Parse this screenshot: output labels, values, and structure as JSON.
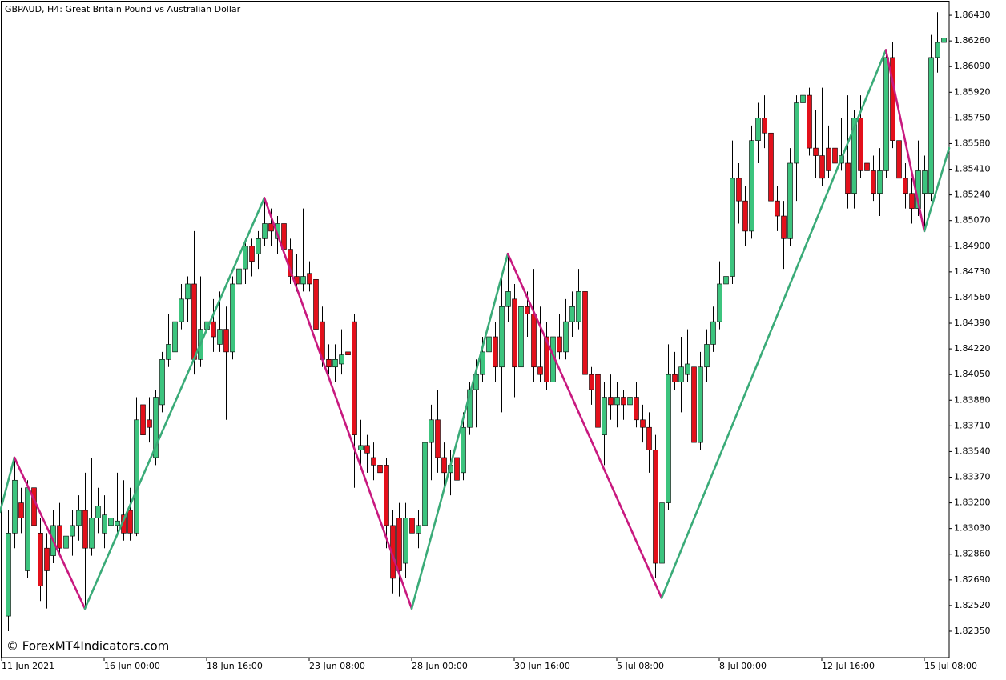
{
  "chart_data": {
    "type": "candlestick",
    "title": "GBPAUD, H4:  Great Britain Pound vs Australian Dollar",
    "watermark": "© ForexMT4Indicators.com",
    "up_color": "#3cc47e",
    "down_color": "#e3101b",
    "xlim": [
      -1.25,
      146.875
    ],
    "ylim": [
      1.82175,
      1.86531
    ],
    "xticks": [
      {
        "value": 0,
        "label": "11 Jun 2021"
      },
      {
        "value": 16,
        "label": "16 Jun 00:00"
      },
      {
        "value": 32,
        "label": "18 Jun 16:00"
      },
      {
        "value": 48,
        "label": "23 Jun 08:00"
      },
      {
        "value": 64,
        "label": "28 Jun 00:00"
      },
      {
        "value": 80,
        "label": "30 Jun 16:00"
      },
      {
        "value": 96,
        "label": "5 Jul 08:00"
      },
      {
        "value": 112,
        "label": "8 Jul 00:00"
      },
      {
        "value": 128,
        "label": "12 Jul 16:00"
      },
      {
        "value": 144,
        "label": "15 Jul 08:00"
      }
    ],
    "yticks": [
      {
        "value": 1.8643,
        "label": "1.86430"
      },
      {
        "value": 1.8626,
        "label": "1.86260"
      },
      {
        "value": 1.8609,
        "label": "1.86090"
      },
      {
        "value": 1.8592,
        "label": "1.85920"
      },
      {
        "value": 1.8575,
        "label": "1.85750"
      },
      {
        "value": 1.8558,
        "label": "1.85580"
      },
      {
        "value": 1.8541,
        "label": "1.85410"
      },
      {
        "value": 1.8524,
        "label": "1.85240"
      },
      {
        "value": 1.8507,
        "label": "1.85070"
      },
      {
        "value": 1.849,
        "label": "1.84900"
      },
      {
        "value": 1.8473,
        "label": "1.84730"
      },
      {
        "value": 1.8456,
        "label": "1.84560"
      },
      {
        "value": 1.8439,
        "label": "1.84390"
      },
      {
        "value": 1.8422,
        "label": "1.84220"
      },
      {
        "value": 1.8405,
        "label": "1.84050"
      },
      {
        "value": 1.8388,
        "label": "1.83880"
      },
      {
        "value": 1.8371,
        "label": "1.83710"
      },
      {
        "value": 1.8354,
        "label": "1.83540"
      },
      {
        "value": 1.8337,
        "label": "1.83370"
      },
      {
        "value": 1.832,
        "label": "1.83200"
      },
      {
        "value": 1.8303,
        "label": "1.83030"
      },
      {
        "value": 1.8286,
        "label": "1.82860"
      },
      {
        "value": 1.8269,
        "label": "1.82690"
      },
      {
        "value": 1.8252,
        "label": "1.82520"
      },
      {
        "value": 1.8235,
        "label": "1.82350"
      }
    ],
    "ohlc": [
      [
        1.8245,
        1.8315,
        1.8235,
        1.83
      ],
      [
        1.83,
        1.835,
        1.829,
        1.8335
      ],
      [
        1.832,
        1.833,
        1.83,
        1.831
      ],
      [
        1.8275,
        1.8335,
        1.827,
        1.833
      ],
      [
        1.833,
        1.8332,
        1.8295,
        1.8305
      ],
      [
        1.83,
        1.831,
        1.8255,
        1.8265
      ],
      [
        1.829,
        1.83,
        1.825,
        1.8275
      ],
      [
        1.8285,
        1.8315,
        1.828,
        1.8305
      ],
      [
        1.8305,
        1.832,
        1.8285,
        1.829
      ],
      [
        1.829,
        1.831,
        1.828,
        1.8298
      ],
      [
        1.8298,
        1.8315,
        1.8285,
        1.8305
      ],
      [
        1.8305,
        1.8325,
        1.8295,
        1.8315
      ],
      [
        1.8315,
        1.834,
        1.825,
        1.829
      ],
      [
        1.829,
        1.835,
        1.8285,
        1.831
      ],
      [
        1.831,
        1.833,
        1.83,
        1.8318
      ],
      [
        1.83,
        1.8325,
        1.829,
        1.8312
      ],
      [
        1.8305,
        1.832,
        1.8295,
        1.831
      ],
      [
        1.8305,
        1.834,
        1.8298,
        1.8308
      ],
      [
        1.8312,
        1.8335,
        1.8295,
        1.83
      ],
      [
        1.8315,
        1.833,
        1.8295,
        1.83
      ],
      [
        1.83,
        1.839,
        1.8298,
        1.8375
      ],
      [
        1.8385,
        1.8405,
        1.836,
        1.8365
      ],
      [
        1.8375,
        1.839,
        1.836,
        1.837
      ],
      [
        1.835,
        1.8395,
        1.8345,
        1.839
      ],
      [
        1.8385,
        1.842,
        1.838,
        1.8415
      ],
      [
        1.8415,
        1.8445,
        1.841,
        1.8425
      ],
      [
        1.842,
        1.845,
        1.8415,
        1.844
      ],
      [
        1.844,
        1.8465,
        1.8435,
        1.8455
      ],
      [
        1.8455,
        1.847,
        1.844,
        1.8465
      ],
      [
        1.8465,
        1.85,
        1.8405,
        1.8415
      ],
      [
        1.8415,
        1.847,
        1.841,
        1.8435
      ],
      [
        1.8435,
        1.8485,
        1.843,
        1.844
      ],
      [
        1.844,
        1.8455,
        1.842,
        1.843
      ],
      [
        1.8425,
        1.846,
        1.842,
        1.8435
      ],
      [
        1.8435,
        1.845,
        1.8375,
        1.842
      ],
      [
        1.842,
        1.847,
        1.8415,
        1.8465
      ],
      [
        1.8465,
        1.8485,
        1.8455,
        1.8475
      ],
      [
        1.8475,
        1.8495,
        1.8465,
        1.849
      ],
      [
        1.849,
        1.8495,
        1.847,
        1.848
      ],
      [
        1.8485,
        1.85,
        1.8475,
        1.8495
      ],
      [
        1.8495,
        1.8522,
        1.849,
        1.8505
      ],
      [
        1.8505,
        1.8515,
        1.849,
        1.85
      ],
      [
        1.8495,
        1.851,
        1.8485,
        1.8505
      ],
      [
        1.8505,
        1.851,
        1.848,
        1.8488
      ],
      [
        1.8488,
        1.8495,
        1.8465,
        1.847
      ],
      [
        1.847,
        1.8485,
        1.846,
        1.8465
      ],
      [
        1.8465,
        1.8515,
        1.846,
        1.847
      ],
      [
        1.8472,
        1.848,
        1.846,
        1.8465
      ],
      [
        1.8468,
        1.8475,
        1.843,
        1.8435
      ],
      [
        1.844,
        1.845,
        1.841,
        1.8415
      ],
      [
        1.8415,
        1.8425,
        1.8405,
        1.841
      ],
      [
        1.841,
        1.8425,
        1.84,
        1.8415
      ],
      [
        1.8412,
        1.8435,
        1.8405,
        1.8418
      ],
      [
        1.842,
        1.8445,
        1.841,
        1.8418
      ],
      [
        1.844,
        1.8445,
        1.833,
        1.8365
      ],
      [
        1.8355,
        1.8375,
        1.8345,
        1.8358
      ],
      [
        1.8358,
        1.8365,
        1.834,
        1.8353
      ],
      [
        1.835,
        1.836,
        1.8335,
        1.8345
      ],
      [
        1.8345,
        1.8355,
        1.832,
        1.834
      ],
      [
        1.8345,
        1.835,
        1.829,
        1.8305
      ],
      [
        1.8305,
        1.8315,
        1.826,
        1.827
      ],
      [
        1.831,
        1.832,
        1.8258,
        1.8275
      ],
      [
        1.828,
        1.832,
        1.827,
        1.831
      ],
      [
        1.831,
        1.832,
        1.825,
        1.83
      ],
      [
        1.83,
        1.8315,
        1.829,
        1.8305
      ],
      [
        1.8305,
        1.837,
        1.83,
        1.836
      ],
      [
        1.836,
        1.8385,
        1.8335,
        1.8375
      ],
      [
        1.8375,
        1.8395,
        1.834,
        1.835
      ],
      [
        1.835,
        1.836,
        1.833,
        1.834
      ],
      [
        1.834,
        1.8355,
        1.8325,
        1.8345
      ],
      [
        1.835,
        1.836,
        1.8325,
        1.8335
      ],
      [
        1.834,
        1.838,
        1.8335,
        1.837
      ],
      [
        1.837,
        1.84,
        1.8365,
        1.8395
      ],
      [
        1.8395,
        1.8415,
        1.837,
        1.8405
      ],
      [
        1.8405,
        1.843,
        1.84,
        1.842
      ],
      [
        1.842,
        1.8435,
        1.839,
        1.843
      ],
      [
        1.843,
        1.844,
        1.84,
        1.841
      ],
      [
        1.841,
        1.847,
        1.838,
        1.845
      ],
      [
        1.845,
        1.8485,
        1.844,
        1.846
      ],
      [
        1.8455,
        1.8465,
        1.839,
        1.841
      ],
      [
        1.841,
        1.847,
        1.8405,
        1.845
      ],
      [
        1.845,
        1.846,
        1.843,
        1.8445
      ],
      [
        1.8445,
        1.8475,
        1.84,
        1.841
      ],
      [
        1.841,
        1.845,
        1.84,
        1.8405
      ],
      [
        1.843,
        1.844,
        1.8395,
        1.84
      ],
      [
        1.84,
        1.844,
        1.8395,
        1.843
      ],
      [
        1.843,
        1.8445,
        1.8415,
        1.842
      ],
      [
        1.842,
        1.8455,
        1.8415,
        1.844
      ],
      [
        1.844,
        1.846,
        1.843,
        1.845
      ],
      [
        1.844,
        1.8475,
        1.8435,
        1.846
      ],
      [
        1.846,
        1.8475,
        1.8395,
        1.8405
      ],
      [
        1.8405,
        1.841,
        1.8385,
        1.8395
      ],
      [
        1.8405,
        1.841,
        1.8365,
        1.837
      ],
      [
        1.8365,
        1.84,
        1.8345,
        1.839
      ],
      [
        1.839,
        1.8405,
        1.8375,
        1.8385
      ],
      [
        1.8385,
        1.84,
        1.837,
        1.839
      ],
      [
        1.839,
        1.8395,
        1.8375,
        1.8385
      ],
      [
        1.8385,
        1.8405,
        1.8375,
        1.839
      ],
      [
        1.839,
        1.84,
        1.837,
        1.8375
      ],
      [
        1.8375,
        1.8385,
        1.836,
        1.837
      ],
      [
        1.837,
        1.838,
        1.834,
        1.8355
      ],
      [
        1.8355,
        1.8365,
        1.827,
        1.828
      ],
      [
        1.828,
        1.833,
        1.8257,
        1.832
      ],
      [
        1.832,
        1.8425,
        1.8315,
        1.8405
      ],
      [
        1.8405,
        1.842,
        1.8395,
        1.84
      ],
      [
        1.84,
        1.843,
        1.838,
        1.841
      ],
      [
        1.8405,
        1.8435,
        1.84,
        1.8412
      ],
      [
        1.841,
        1.842,
        1.8355,
        1.836
      ],
      [
        1.836,
        1.842,
        1.8355,
        1.841
      ],
      [
        1.841,
        1.8435,
        1.84,
        1.8425
      ],
      [
        1.8425,
        1.845,
        1.842,
        1.844
      ],
      [
        1.844,
        1.848,
        1.8435,
        1.8465
      ],
      [
        1.8465,
        1.848,
        1.846,
        1.847
      ],
      [
        1.847,
        1.856,
        1.8465,
        1.8535
      ],
      [
        1.8535,
        1.8545,
        1.8505,
        1.852
      ],
      [
        1.852,
        1.853,
        1.849,
        1.85
      ],
      [
        1.85,
        1.857,
        1.8495,
        1.856
      ],
      [
        1.856,
        1.8585,
        1.8545,
        1.8575
      ],
      [
        1.8575,
        1.859,
        1.8555,
        1.8565
      ],
      [
        1.8565,
        1.857,
        1.8515,
        1.852
      ],
      [
        1.852,
        1.853,
        1.85,
        1.851
      ],
      [
        1.851,
        1.852,
        1.8475,
        1.8495
      ],
      [
        1.8495,
        1.8555,
        1.849,
        1.8545
      ],
      [
        1.8545,
        1.859,
        1.852,
        1.8585
      ],
      [
        1.8585,
        1.861,
        1.857,
        1.859
      ],
      [
        1.859,
        1.8595,
        1.855,
        1.8555
      ],
      [
        1.8555,
        1.858,
        1.8535,
        1.855
      ],
      [
        1.855,
        1.8595,
        1.853,
        1.8535
      ],
      [
        1.8555,
        1.857,
        1.8535,
        1.854
      ],
      [
        1.8555,
        1.8565,
        1.8535,
        1.8545
      ],
      [
        1.8545,
        1.8575,
        1.854,
        1.855
      ],
      [
        1.8545,
        1.859,
        1.8515,
        1.8525
      ],
      [
        1.8525,
        1.858,
        1.8515,
        1.8575
      ],
      [
        1.8575,
        1.859,
        1.8535,
        1.854
      ],
      [
        1.8545,
        1.856,
        1.853,
        1.854
      ],
      [
        1.854,
        1.855,
        1.852,
        1.8525
      ],
      [
        1.8525,
        1.8555,
        1.851,
        1.854
      ],
      [
        1.854,
        1.862,
        1.8535,
        1.8615
      ],
      [
        1.8615,
        1.8625,
        1.8555,
        1.856
      ],
      [
        1.856,
        1.857,
        1.852,
        1.8535
      ],
      [
        1.8535,
        1.8545,
        1.8515,
        1.8525
      ],
      [
        1.8525,
        1.8535,
        1.8505,
        1.8515
      ],
      [
        1.8515,
        1.856,
        1.851,
        1.854
      ],
      [
        1.8525,
        1.855,
        1.85,
        1.854
      ],
      [
        1.8525,
        1.863,
        1.852,
        1.8615
      ],
      [
        1.8615,
        1.8645,
        1.8605,
        1.8625
      ],
      [
        1.8625,
        1.8635,
        1.861,
        1.8628
      ]
    ],
    "zigzag": {
      "x": [
        -1.25,
        1,
        12,
        40,
        63,
        78,
        102,
        137,
        143,
        146.875
      ],
      "values": [
        1.8314,
        1.835,
        1.825,
        1.8522,
        1.825,
        1.8485,
        1.8257,
        1.862,
        1.85,
        1.8555
      ],
      "up_color": "#3aab78",
      "down_color": "#c8197f"
    }
  }
}
